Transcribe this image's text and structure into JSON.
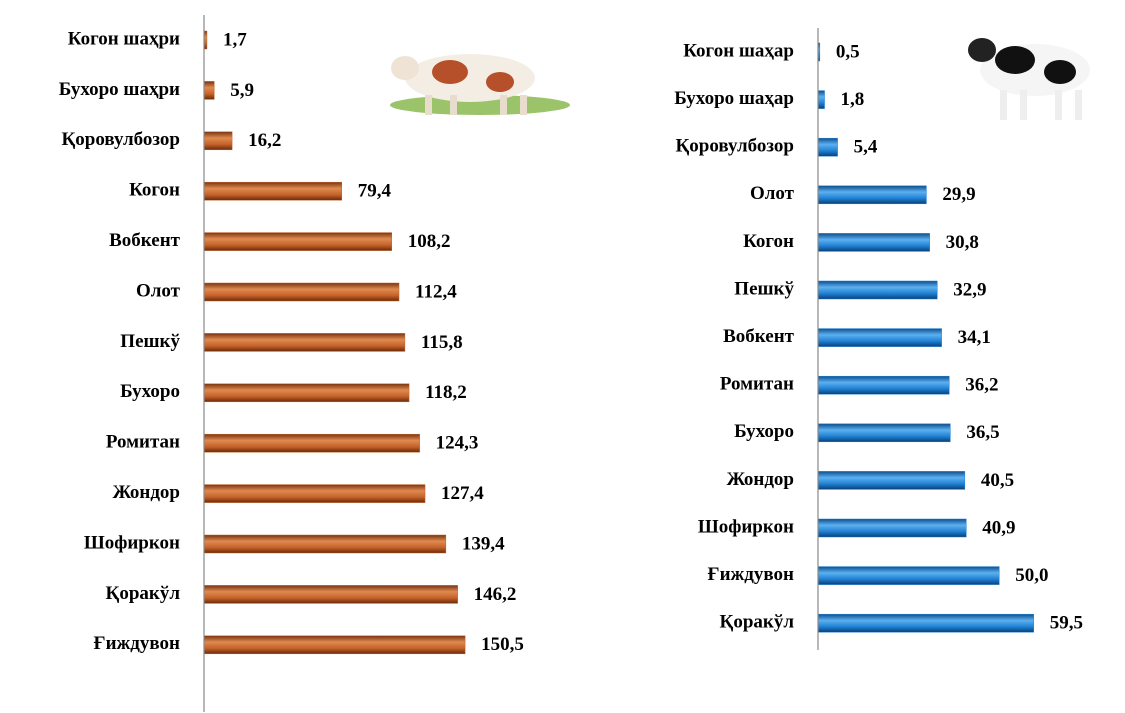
{
  "chart_data": [
    {
      "type": "bar",
      "orientation": "horizontal",
      "color": "#c4622a",
      "categories": [
        "Когон шаҳри",
        "Бухоро шаҳри",
        "Қоровулбозор",
        "Когон",
        "Вобкент",
        "Олот",
        "Пешкў",
        "Бухоро",
        "Ромитан",
        "Жондор",
        "Шофиркон",
        "Қоракўл",
        "Ғиждувон"
      ],
      "values": [
        1.7,
        5.9,
        16.2,
        79.4,
        108.2,
        112.4,
        115.8,
        118.2,
        124.3,
        127.4,
        139.4,
        146.2,
        150.5
      ],
      "value_labels": [
        "1,7",
        "5,9",
        "16,2",
        "79,4",
        "108,2",
        "112,4",
        "115,8",
        "118,2",
        "124,3",
        "127,4",
        "139,4",
        "146,2",
        "150,5"
      ],
      "xlim": [
        0,
        200
      ]
    },
    {
      "type": "bar",
      "orientation": "horizontal",
      "color": "#1f80d2",
      "categories": [
        "Когон шаҳар",
        "Бухоро шаҳар",
        "Қоровулбозор",
        "Олот",
        "Когон",
        "Пешкў",
        "Вобкент",
        "Ромитан",
        "Бухоро",
        "Жондор",
        "Шофиркон",
        "Ғиждувон",
        "Қоракўл"
      ],
      "values": [
        0.5,
        1.8,
        5.4,
        29.9,
        30.8,
        32.9,
        34.1,
        36.2,
        36.5,
        40.5,
        40.9,
        50.0,
        59.5
      ],
      "value_labels": [
        "0,5",
        "1,8",
        "5,4",
        "29,9",
        "30,8",
        "32,9",
        "34,1",
        "36,2",
        "36,5",
        "40,5",
        "40,9",
        "50,0",
        "59,5"
      ],
      "xlim": [
        0,
        80
      ]
    }
  ]
}
